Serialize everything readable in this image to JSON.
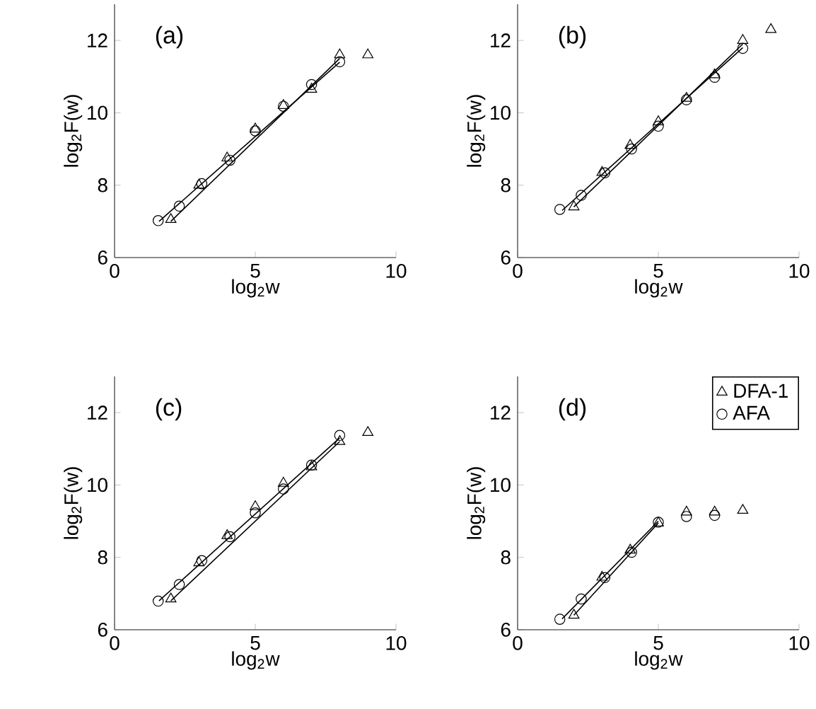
{
  "chart_data": [
    {
      "type": "scatter",
      "annotations": [
        "(a)"
      ],
      "xlabel": "log$_{2}$w",
      "ylabel": "log$_{2}$F(w)",
      "xlim": [
        0,
        10
      ],
      "ylim": [
        6,
        13
      ],
      "xticks": [
        0,
        5,
        10
      ],
      "yticks": [
        6,
        8,
        10,
        12
      ],
      "legend": false,
      "series": [
        {
          "color": "#000000",
          "marker": "triangle",
          "x": [
            2,
            3,
            4,
            5,
            6,
            7,
            8,
            9
          ],
          "values": [
            7.05,
            8.0,
            8.75,
            9.55,
            10.2,
            10.65,
            11.6,
            11.6
          ]
        },
        {
          "color": "#000000",
          "marker": "circle",
          "x": [
            1.55,
            2.3,
            3.1,
            4.1,
            5.0,
            6.0,
            7.0,
            8.0
          ],
          "values": [
            7.02,
            7.42,
            8.04,
            8.69,
            9.5,
            10.18,
            10.78,
            11.41
          ]
        },
        {
          "type": "line",
          "color": "#000000",
          "marker": "none",
          "x": [
            2,
            8
          ],
          "values": [
            7.0,
            11.5
          ]
        },
        {
          "type": "line",
          "color": "#000000",
          "marker": "none",
          "x": [
            1.58,
            8
          ],
          "values": [
            7.0,
            11.4
          ]
        }
      ]
    },
    {
      "type": "scatter",
      "annotations": [
        "(b)"
      ],
      "xlabel": "log$_{2}$w",
      "ylabel": "log$_{2}$F(w)",
      "xlim": [
        0,
        10
      ],
      "ylim": [
        6,
        13
      ],
      "xticks": [
        0,
        5,
        10
      ],
      "yticks": [
        6,
        8,
        10,
        12
      ],
      "legend": false,
      "series": [
        {
          "color": "#000000",
          "marker": "triangle",
          "x": [
            2,
            3,
            4,
            5,
            6,
            7,
            8,
            9
          ],
          "values": [
            7.4,
            8.35,
            9.1,
            9.75,
            10.4,
            11.05,
            12.0,
            12.3
          ]
        },
        {
          "color": "#000000",
          "marker": "circle",
          "x": [
            1.5,
            2.26,
            3.1,
            4.05,
            5.0,
            6.0,
            7.0,
            8.0
          ],
          "values": [
            7.33,
            7.72,
            8.34,
            9.0,
            9.63,
            10.36,
            10.98,
            11.78
          ]
        },
        {
          "type": "line",
          "color": "#000000",
          "marker": "none",
          "x": [
            2,
            8
          ],
          "values": [
            7.4,
            11.9
          ]
        },
        {
          "type": "line",
          "color": "#000000",
          "marker": "none",
          "x": [
            1.58,
            8
          ],
          "values": [
            7.3,
            11.8
          ]
        }
      ]
    },
    {
      "type": "scatter",
      "annotations": [
        "(c)"
      ],
      "xlabel": "log$_{2}$w",
      "ylabel": "log$_{2}$F(w)",
      "xlim": [
        0,
        10
      ],
      "ylim": [
        6,
        13
      ],
      "xticks": [
        0,
        5,
        10
      ],
      "yticks": [
        6,
        8,
        10,
        12
      ],
      "legend": false,
      "series": [
        {
          "color": "#000000",
          "marker": "triangle",
          "x": [
            2,
            3,
            4,
            5,
            6,
            7,
            8,
            9
          ],
          "values": [
            6.85,
            7.85,
            8.6,
            9.4,
            10.05,
            10.5,
            11.2,
            11.45
          ]
        },
        {
          "color": "#000000",
          "marker": "circle",
          "x": [
            1.55,
            2.3,
            3.1,
            4.1,
            5.0,
            6.0,
            7.0,
            8.0
          ],
          "values": [
            6.79,
            7.25,
            7.91,
            8.57,
            9.23,
            9.89,
            10.55,
            11.37
          ]
        },
        {
          "type": "line",
          "color": "#000000",
          "marker": "none",
          "x": [
            2,
            8
          ],
          "values": [
            6.8,
            11.2
          ]
        },
        {
          "type": "line",
          "color": "#000000",
          "marker": "none",
          "x": [
            1.58,
            8
          ],
          "values": [
            6.8,
            11.3
          ]
        }
      ]
    },
    {
      "type": "scatter",
      "annotations": [
        "(d)"
      ],
      "xlabel": "log$_{2}$w",
      "ylabel": "log$_{2}$F(w)",
      "xlim": [
        0,
        10
      ],
      "ylim": [
        6,
        13
      ],
      "xticks": [
        0,
        5,
        10
      ],
      "yticks": [
        6,
        8,
        10,
        12
      ],
      "legend": "top right",
      "series": [
        {
          "name": "DFA-1",
          "color": "#000000",
          "marker": "triangle",
          "x": [
            2,
            3,
            4,
            5,
            6,
            7,
            8
          ],
          "values": [
            6.4,
            7.45,
            8.2,
            8.95,
            9.25,
            9.25,
            9.3
          ]
        },
        {
          "name": "AFA",
          "color": "#000000",
          "marker": "circle",
          "x": [
            1.5,
            2.26,
            3.1,
            4.05,
            5.0,
            6.0,
            7.0
          ],
          "values": [
            6.29,
            6.85,
            7.44,
            8.14,
            8.97,
            9.13,
            9.16
          ]
        },
        {
          "type": "line",
          "color": "#000000",
          "marker": "none",
          "x": [
            2,
            5
          ],
          "values": [
            6.4,
            8.95
          ]
        },
        {
          "type": "line",
          "color": "#000000",
          "marker": "none",
          "x": [
            1.58,
            5
          ],
          "values": [
            6.3,
            9.0
          ]
        }
      ]
    }
  ]
}
